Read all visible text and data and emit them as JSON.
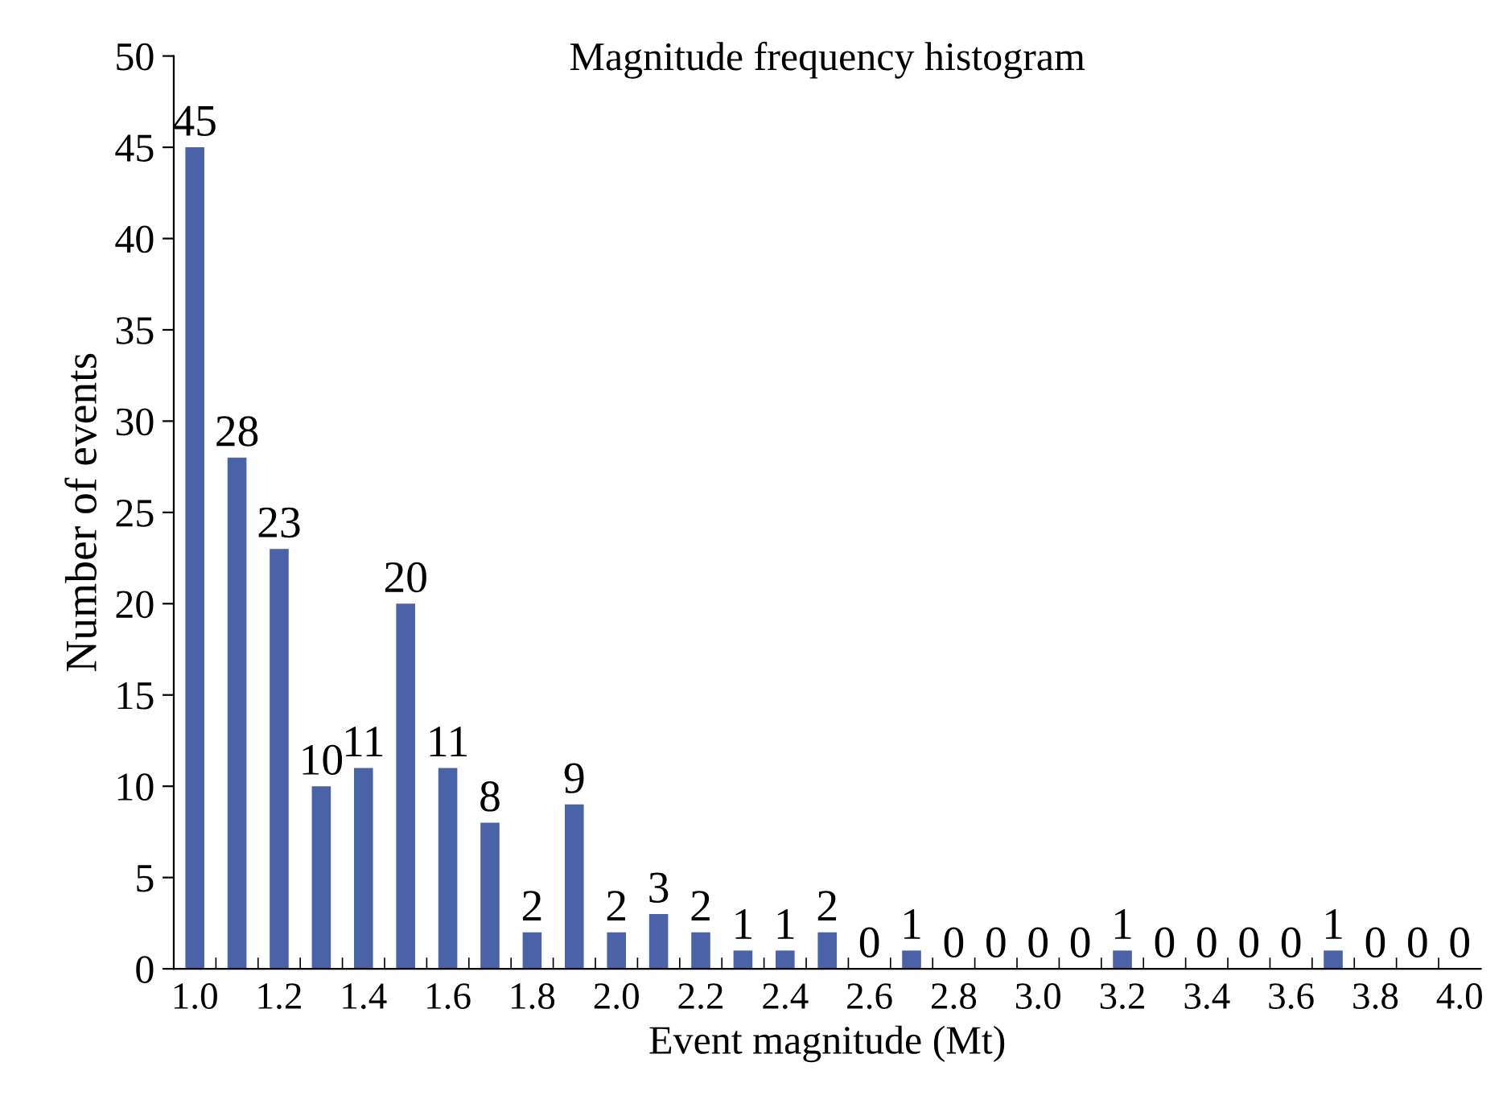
{
  "chart_data": {
    "type": "bar",
    "title": "Magnitude frequency histogram",
    "xlabel": "Event magnitude (Mt)",
    "ylabel": "Number of events",
    "categories": [
      "1.0",
      null,
      "1.2",
      null,
      "1.4",
      null,
      "1.6",
      null,
      "1.8",
      null,
      "2.0",
      null,
      "2.2",
      null,
      "2.4",
      null,
      "2.6",
      null,
      "2.8",
      null,
      "3.0",
      null,
      "3.2",
      null,
      "3.4",
      null,
      "3.6",
      null,
      "3.8",
      null,
      "4.0"
    ],
    "values": [
      45,
      28,
      23,
      10,
      11,
      20,
      11,
      8,
      2,
      9,
      2,
      3,
      2,
      1,
      1,
      2,
      0,
      1,
      0,
      0,
      0,
      0,
      1,
      0,
      0,
      0,
      0,
      1,
      0,
      0,
      0
    ],
    "color": "#4a62a8",
    "ylim": [
      0,
      50
    ],
    "yticks": [
      0,
      5,
      10,
      15,
      20,
      25,
      30,
      35,
      40,
      45,
      50
    ],
    "data_labels": true,
    "grid": false,
    "legend": false
  }
}
